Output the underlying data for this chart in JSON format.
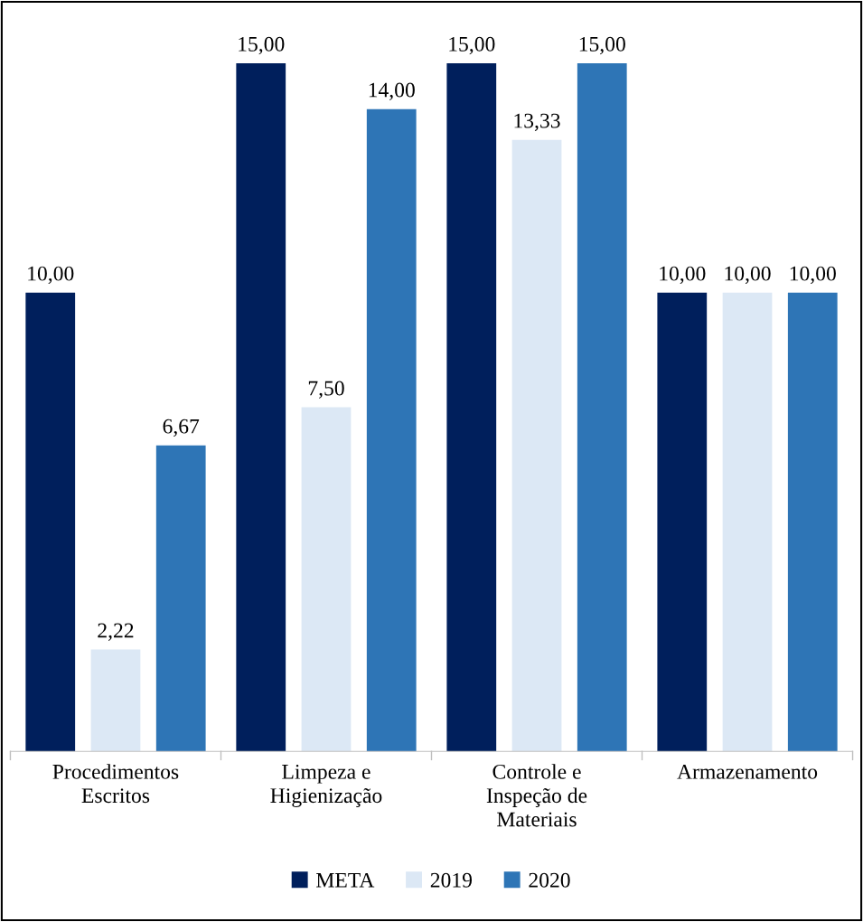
{
  "chart_data": {
    "type": "bar",
    "categories": [
      "Procedimentos\nEscritos",
      "Limpeza e\nHigienização",
      "Controle e\nInspeção de\nMateriais",
      "Armazenamento"
    ],
    "series": [
      {
        "name": "META",
        "color": "#001f5c",
        "values": [
          10,
          15,
          15,
          10
        ],
        "value_labels": [
          "10,00",
          "15,00",
          "15,00",
          "10,00"
        ]
      },
      {
        "name": "2019",
        "color": "#dce8f5",
        "values": [
          2.22,
          7.5,
          13.33,
          10
        ],
        "value_labels": [
          "2,22",
          "7,50",
          "13,33",
          "10,00"
        ]
      },
      {
        "name": "2020",
        "color": "#2e75b6",
        "values": [
          6.67,
          14,
          15,
          10
        ],
        "value_labels": [
          "6,67",
          "14,00",
          "15,00",
          "10,00"
        ]
      }
    ],
    "legend": "bottom",
    "grid": false,
    "tick_labels": "x"
  }
}
